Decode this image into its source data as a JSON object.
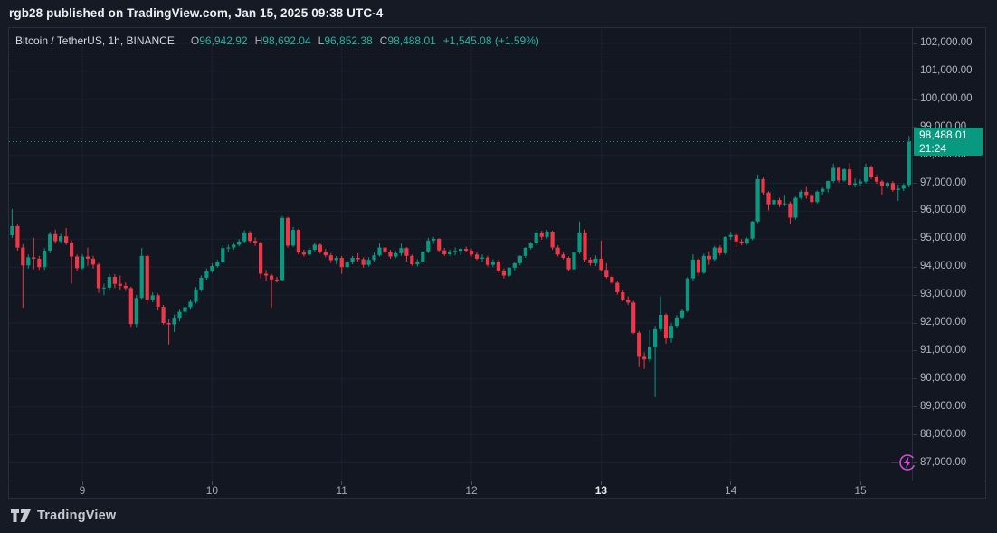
{
  "header": {
    "publish_text": "rgb28 published on TradingView.com, Jan 15, 2025 09:38 UTC-4"
  },
  "legend": {
    "symbol": "Bitcoin / TetherUS, 1h, BINANCE",
    "ohlc": [
      {
        "k": "O",
        "v": "96,942.92"
      },
      {
        "k": "H",
        "v": "98,692.04"
      },
      {
        "k": "L",
        "v": "96,852.38"
      },
      {
        "k": "C",
        "v": "98,488.01"
      }
    ],
    "change": "+1,545.08 (+1.59%)"
  },
  "footer": {
    "brand": "TradingView"
  },
  "chart_data": {
    "type": "candlestick",
    "title": "Bitcoin / TetherUS, 1h, BINANCE",
    "symbol": "Bitcoin / TetherUS",
    "interval": "1h",
    "exchange": "BINANCE",
    "colors": {
      "up": "#089981",
      "down": "#f23645",
      "grid": "#1c2030",
      "price_line": "#089981",
      "tag_bg": "#089981",
      "boost": "#cf4fd8"
    },
    "last_price": {
      "value": 98488.01,
      "label": "98,488.01",
      "countdown": "21:24"
    },
    "y_axis": {
      "min": 87000,
      "max": 102000,
      "step": 1000,
      "levels": [
        {
          "value": 102000,
          "label": "102,000.00"
        },
        {
          "value": 101000,
          "label": "101,000.00"
        },
        {
          "value": 100000,
          "label": "100,000.00"
        },
        {
          "value": 99000,
          "label": "99,000.00"
        },
        {
          "value": 98000,
          "label": "98,000.00"
        },
        {
          "value": 97000,
          "label": "97,000.00"
        },
        {
          "value": 96000,
          "label": "96,000.00"
        },
        {
          "value": 95000,
          "label": "95,000.00"
        },
        {
          "value": 94000,
          "label": "94,000.00"
        },
        {
          "value": 93000,
          "label": "93,000.00"
        },
        {
          "value": 92000,
          "label": "92,000.00"
        },
        {
          "value": 91000,
          "label": "91,000.00"
        },
        {
          "value": 90000,
          "label": "90,000.00"
        },
        {
          "value": 89000,
          "label": "89,000.00"
        },
        {
          "value": 88000,
          "label": "88,000.00"
        },
        {
          "value": 87000,
          "label": "87,000.00"
        }
      ]
    },
    "x_axis": {
      "labels": [
        {
          "text": "9",
          "candle_index": 13,
          "bold": false
        },
        {
          "text": "10",
          "candle_index": 37,
          "bold": false
        },
        {
          "text": "11",
          "candle_index": 61,
          "bold": false
        },
        {
          "text": "12",
          "candle_index": 85,
          "bold": false
        },
        {
          "text": "13",
          "candle_index": 109,
          "bold": true
        },
        {
          "text": "14",
          "candle_index": 133,
          "bold": false
        },
        {
          "text": "15",
          "candle_index": 157,
          "bold": false
        }
      ]
    },
    "candles": [
      [
        95140,
        96080,
        95050,
        95465
      ],
      [
        95465,
        95520,
        94590,
        94700
      ],
      [
        94700,
        94820,
        92550,
        94060
      ],
      [
        94060,
        94450,
        93950,
        94350
      ],
      [
        94350,
        95050,
        93930,
        94300
      ],
      [
        94300,
        94400,
        93900,
        94000
      ],
      [
        94000,
        94680,
        93900,
        94590
      ],
      [
        94590,
        95260,
        94500,
        95180
      ],
      [
        95180,
        95340,
        94850,
        94930
      ],
      [
        94930,
        95200,
        94860,
        95100
      ],
      [
        95100,
        95400,
        94800,
        94880
      ],
      [
        94880,
        94950,
        93410,
        94380
      ],
      [
        94380,
        94450,
        93850,
        93960
      ],
      [
        93960,
        94470,
        93900,
        94380
      ],
      [
        94380,
        94700,
        94050,
        94300
      ],
      [
        94300,
        94400,
        93950,
        94090
      ],
      [
        94090,
        94150,
        93080,
        93250
      ],
      [
        93250,
        93400,
        93000,
        93270
      ],
      [
        93270,
        93750,
        93150,
        93650
      ],
      [
        93650,
        93750,
        93250,
        93400
      ],
      [
        93400,
        93700,
        93180,
        93330
      ],
      [
        93330,
        93450,
        93150,
        93250
      ],
      [
        93250,
        93300,
        91860,
        91960
      ],
      [
        91960,
        93000,
        91850,
        92900
      ],
      [
        92900,
        94690,
        92850,
        94400
      ],
      [
        94400,
        94450,
        92700,
        92840
      ],
      [
        92840,
        93100,
        92740,
        92990
      ],
      [
        92990,
        93050,
        92450,
        92580
      ],
      [
        92580,
        92650,
        91940,
        92000
      ],
      [
        92000,
        92150,
        91230,
        91950
      ],
      [
        91950,
        92300,
        91680,
        92190
      ],
      [
        92190,
        92480,
        92060,
        92400
      ],
      [
        92400,
        92650,
        92300,
        92570
      ],
      [
        92570,
        92850,
        92480,
        92760
      ],
      [
        92760,
        93290,
        92700,
        93200
      ],
      [
        93200,
        93700,
        93120,
        93620
      ],
      [
        93620,
        93950,
        93550,
        93850
      ],
      [
        93850,
        94140,
        93800,
        94040
      ],
      [
        94040,
        94260,
        93970,
        94170
      ],
      [
        94170,
        94790,
        94100,
        94680
      ],
      [
        94680,
        94800,
        94550,
        94700
      ],
      [
        94700,
        94880,
        94620,
        94800
      ],
      [
        94800,
        95000,
        94740,
        94920
      ],
      [
        94920,
        95310,
        94850,
        95240
      ],
      [
        95240,
        95290,
        94850,
        94940
      ],
      [
        94940,
        95060,
        94760,
        94870
      ],
      [
        94870,
        94920,
        93600,
        93760
      ],
      [
        93760,
        93900,
        93500,
        93700
      ],
      [
        93700,
        93760,
        92560,
        93560
      ],
      [
        93560,
        93650,
        93450,
        93540
      ],
      [
        93540,
        95830,
        93500,
        95760
      ],
      [
        95760,
        95800,
        94700,
        94770
      ],
      [
        94770,
        95440,
        94720,
        95330
      ],
      [
        95330,
        95380,
        94450,
        94520
      ],
      [
        94520,
        94620,
        94380,
        94450
      ],
      [
        94450,
        94700,
        94400,
        94620
      ],
      [
        94620,
        94870,
        94560,
        94800
      ],
      [
        94800,
        94850,
        94480,
        94550
      ],
      [
        94550,
        94650,
        94350,
        94420
      ],
      [
        94420,
        94500,
        94150,
        94250
      ],
      [
        94250,
        94400,
        94100,
        94330
      ],
      [
        94330,
        94400,
        93760,
        94000
      ],
      [
        94000,
        94250,
        93950,
        94180
      ],
      [
        94180,
        94400,
        94100,
        94330
      ],
      [
        94330,
        94500,
        94200,
        94280
      ],
      [
        94280,
        94350,
        93980,
        94080
      ],
      [
        94080,
        94350,
        94020,
        94260
      ],
      [
        94260,
        94520,
        94200,
        94420
      ],
      [
        94420,
        94860,
        94380,
        94700
      ],
      [
        94700,
        94750,
        94450,
        94540
      ],
      [
        94540,
        94620,
        94300,
        94380
      ],
      [
        94380,
        94580,
        94320,
        94500
      ],
      [
        94500,
        94840,
        94400,
        94680
      ],
      [
        94680,
        94720,
        94200,
        94400
      ],
      [
        94400,
        94450,
        94050,
        94100
      ],
      [
        94100,
        94280,
        94020,
        94200
      ],
      [
        94200,
        94600,
        94150,
        94560
      ],
      [
        94560,
        95050,
        94500,
        94950
      ],
      [
        94950,
        95080,
        94830,
        95010
      ],
      [
        95010,
        95040,
        94550,
        94600
      ],
      [
        94600,
        94690,
        94400,
        94460
      ],
      [
        94460,
        94620,
        94400,
        94560
      ],
      [
        94560,
        94700,
        94420,
        94580
      ],
      [
        94580,
        94700,
        94450,
        94650
      ],
      [
        94650,
        94730,
        94520,
        94590
      ],
      [
        94590,
        94660,
        94380,
        94450
      ],
      [
        94450,
        94520,
        94250,
        94300
      ],
      [
        94300,
        94450,
        94180,
        94340
      ],
      [
        94340,
        94400,
        94020,
        94080
      ],
      [
        94080,
        94280,
        94000,
        94200
      ],
      [
        94200,
        94260,
        93800,
        93870
      ],
      [
        93870,
        93950,
        93600,
        93700
      ],
      [
        93700,
        93990,
        93650,
        93980
      ],
      [
        93980,
        94200,
        93880,
        94140
      ],
      [
        94140,
        94420,
        94060,
        94400
      ],
      [
        94400,
        94710,
        94330,
        94690
      ],
      [
        94690,
        94900,
        94620,
        94850
      ],
      [
        94850,
        95340,
        94780,
        95240
      ],
      [
        95240,
        95300,
        94980,
        95080
      ],
      [
        95080,
        95330,
        95020,
        95270
      ],
      [
        95270,
        95300,
        94620,
        94700
      ],
      [
        94700,
        94780,
        94380,
        94450
      ],
      [
        94450,
        94520,
        94280,
        94330
      ],
      [
        94330,
        94380,
        93870,
        93920
      ],
      [
        93920,
        94570,
        93880,
        94530
      ],
      [
        94530,
        95630,
        94470,
        95240
      ],
      [
        95240,
        95340,
        94200,
        94270
      ],
      [
        94270,
        94350,
        94050,
        94140
      ],
      [
        94140,
        94420,
        94040,
        94300
      ],
      [
        94300,
        94950,
        93850,
        93900
      ],
      [
        93900,
        94140,
        93600,
        93650
      ],
      [
        93650,
        93720,
        93380,
        93440
      ],
      [
        93440,
        93500,
        93020,
        93100
      ],
      [
        93100,
        93180,
        92780,
        92840
      ],
      [
        92840,
        92950,
        92650,
        92730
      ],
      [
        92730,
        92800,
        91600,
        91650
      ],
      [
        91650,
        91720,
        90420,
        90820
      ],
      [
        90820,
        90950,
        90360,
        90700
      ],
      [
        90700,
        91750,
        90600,
        91130
      ],
      [
        91130,
        91900,
        89350,
        91780
      ],
      [
        91780,
        92950,
        91700,
        92290
      ],
      [
        92290,
        92350,
        91260,
        91450
      ],
      [
        91450,
        92000,
        91300,
        91900
      ],
      [
        91900,
        92280,
        91820,
        92200
      ],
      [
        92200,
        92500,
        92130,
        92430
      ],
      [
        92430,
        93650,
        92380,
        93600
      ],
      [
        93600,
        94460,
        93520,
        94270
      ],
      [
        94270,
        94320,
        93700,
        93800
      ],
      [
        93800,
        94480,
        93750,
        94400
      ],
      [
        94400,
        94560,
        94080,
        94280
      ],
      [
        94280,
        94760,
        94220,
        94700
      ],
      [
        94700,
        94780,
        94420,
        94500
      ],
      [
        94500,
        95100,
        94450,
        95080
      ],
      [
        95080,
        95260,
        94980,
        95150
      ],
      [
        95150,
        95200,
        94720,
        94920
      ],
      [
        94920,
        95000,
        94780,
        94850
      ],
      [
        94850,
        95060,
        94800,
        95020
      ],
      [
        95020,
        95660,
        94960,
        95630
      ],
      [
        95630,
        97310,
        95580,
        97150
      ],
      [
        97150,
        97200,
        96600,
        96670
      ],
      [
        96670,
        96720,
        96030,
        96250
      ],
      [
        96250,
        97180,
        96150,
        96400
      ],
      [
        96400,
        96480,
        96150,
        96250
      ],
      [
        96250,
        96550,
        96180,
        96280
      ],
      [
        96280,
        96350,
        95540,
        95770
      ],
      [
        95770,
        96520,
        95700,
        96480
      ],
      [
        96480,
        96760,
        96420,
        96700
      ],
      [
        96700,
        96870,
        96450,
        96550
      ],
      [
        96550,
        96650,
        96250,
        96330
      ],
      [
        96330,
        96740,
        96280,
        96700
      ],
      [
        96700,
        96850,
        96600,
        96800
      ],
      [
        96800,
        97100,
        96670,
        97080
      ],
      [
        97080,
        97700,
        97020,
        97550
      ],
      [
        97550,
        97600,
        97030,
        97100
      ],
      [
        97100,
        97530,
        97050,
        97500
      ],
      [
        97500,
        97730,
        96900,
        96950
      ],
      [
        96950,
        97170,
        96850,
        97000
      ],
      [
        97000,
        97150,
        96920,
        97060
      ],
      [
        97060,
        97700,
        97000,
        97590
      ],
      [
        97590,
        97640,
        97150,
        97210
      ],
      [
        97210,
        97300,
        96980,
        97060
      ],
      [
        97060,
        97120,
        96580,
        96900
      ],
      [
        96900,
        97050,
        96820,
        97010
      ],
      [
        97010,
        97080,
        96700,
        96760
      ],
      [
        96760,
        96950,
        96370,
        96810
      ],
      [
        96810,
        96990,
        96720,
        96943
      ],
      [
        96942.92,
        98692.04,
        96852.38,
        98488.01
      ]
    ]
  }
}
